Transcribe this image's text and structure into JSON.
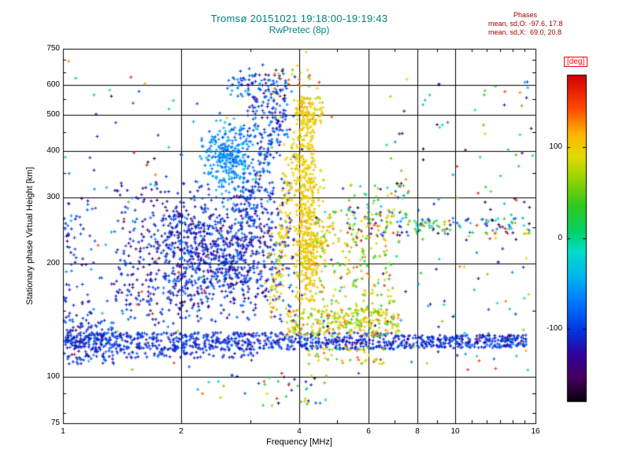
{
  "chart_data": {
    "type": "scatter",
    "title": "Tromsø 20151021 19:18:00-19:19:43",
    "subtitle": "RwPretec (8p)",
    "xlabel": "Frequency [MHz]",
    "ylabel": "Stationary phase Virtual Height [km]",
    "xscale": "log",
    "yscale": "log",
    "xlim": [
      1,
      16
    ],
    "ylim": [
      75,
      750
    ],
    "x_ticks": [
      1,
      2,
      4,
      6,
      8,
      10,
      16
    ],
    "x_grid": [
      2,
      4,
      6,
      8,
      10
    ],
    "x_minor": [
      3,
      5,
      7,
      9,
      11,
      12,
      13,
      14,
      15
    ],
    "y_ticks": [
      75,
      100,
      200,
      300,
      400,
      500,
      600,
      750
    ],
    "y_grid": [
      100,
      200,
      300,
      400,
      500,
      600
    ],
    "y_minor": [
      80,
      90,
      150,
      250,
      350,
      450,
      550,
      650,
      700
    ],
    "marker": "plus",
    "grid": true,
    "colorbar": {
      "label": "[deg]",
      "min": -180,
      "max": 180,
      "ticks": [
        100,
        0,
        -100
      ],
      "stops": [
        [
          0.0,
          "#0a0010"
        ],
        [
          0.07,
          "#46005e"
        ],
        [
          0.14,
          "#32009b"
        ],
        [
          0.22,
          "#0038e1"
        ],
        [
          0.3,
          "#0075ff"
        ],
        [
          0.38,
          "#00b4f0"
        ],
        [
          0.46,
          "#00ddc8"
        ],
        [
          0.52,
          "#00d264"
        ],
        [
          0.6,
          "#2fc81e"
        ],
        [
          0.68,
          "#96d200"
        ],
        [
          0.75,
          "#e1dc00"
        ],
        [
          0.82,
          "#ffb400"
        ],
        [
          0.9,
          "#ff4600"
        ],
        [
          1.0,
          "#d20000"
        ]
      ]
    },
    "clusters": [
      {
        "type": "box",
        "n": 700,
        "f": [
          1.0,
          7.0
        ],
        "h": [
          118,
          131
        ],
        "phase": [
          -105,
          14
        ]
      },
      {
        "type": "box",
        "n": 300,
        "f": [
          7.0,
          15.2
        ],
        "h": [
          119,
          129
        ],
        "phase": [
          -105,
          16
        ]
      },
      {
        "type": "box",
        "n": 140,
        "f": [
          1.0,
          1.35
        ],
        "h": [
          108,
          142
        ],
        "phase": [
          -105,
          20
        ]
      },
      {
        "type": "box",
        "n": 80,
        "f": [
          1.35,
          3.2
        ],
        "h": [
          112,
          120
        ],
        "phase": [
          -110,
          15
        ]
      },
      {
        "type": "box",
        "n": 260,
        "f": [
          3.7,
          7.2
        ],
        "h": [
          128,
          152
        ],
        "phase": [
          85,
          30
        ]
      },
      {
        "type": "box",
        "n": 50,
        "f": [
          4.2,
          6.6
        ],
        "h": [
          108,
          120
        ],
        "phase": [
          80,
          40
        ]
      },
      {
        "type": "gauss",
        "n": 450,
        "f": [
          2.55,
          0.07
        ],
        "h": [
          205,
          0.06
        ],
        "phase": [
          -110,
          22
        ]
      },
      {
        "type": "gauss",
        "n": 180,
        "f": [
          1.95,
          0.06
        ],
        "h": [
          245,
          0.05
        ],
        "phase": [
          -112,
          20
        ]
      },
      {
        "type": "gauss",
        "n": 160,
        "f": [
          1.75,
          0.07
        ],
        "h": [
          170,
          0.05
        ],
        "phase": [
          -108,
          20
        ]
      },
      {
        "type": "box",
        "n": 320,
        "f": [
          1.35,
          3.9
        ],
        "h": [
          140,
          330
        ],
        "phase": [
          -110,
          28
        ]
      },
      {
        "type": "gauss",
        "n": 150,
        "f": [
          3.1,
          0.04
        ],
        "h": [
          255,
          0.07
        ],
        "phase": [
          -105,
          25
        ]
      },
      {
        "type": "arc",
        "n": 140,
        "f": [
          2.9,
          3.6
        ],
        "h": [
          270,
          520
        ],
        "jf": 0.015,
        "jh": 0.03,
        "phase": [
          -100,
          20
        ]
      },
      {
        "type": "gauss",
        "n": 300,
        "f": [
          2.68,
          0.035
        ],
        "h": [
          385,
          0.045
        ],
        "phase": [
          -62,
          18
        ]
      },
      {
        "type": "box",
        "n": 90,
        "f": [
          2.95,
          3.75
        ],
        "h": [
          430,
          640
        ],
        "phase": [
          -100,
          25
        ]
      },
      {
        "type": "box",
        "n": 30,
        "f": [
          2.6,
          3.1
        ],
        "h": [
          560,
          660
        ],
        "phase": [
          -95,
          30
        ]
      },
      {
        "type": "gauss",
        "n": 40,
        "f": [
          3.35,
          0.03
        ],
        "h": [
          600,
          0.03
        ],
        "phase": [
          -100,
          20
        ]
      },
      {
        "type": "box",
        "n": 280,
        "f": [
          3.92,
          4.38
        ],
        "h": [
          155,
          545
        ],
        "phase": [
          100,
          12
        ]
      },
      {
        "type": "gauss",
        "n": 150,
        "f": [
          4.15,
          0.02
        ],
        "h": [
          330,
          0.1
        ],
        "phase": [
          100,
          12
        ]
      },
      {
        "type": "gauss",
        "n": 160,
        "f": [
          4.3,
          0.018
        ],
        "h": [
          215,
          0.05
        ],
        "phase": [
          102,
          10
        ]
      },
      {
        "type": "box",
        "n": 70,
        "f": [
          4.0,
          4.6
        ],
        "h": [
          470,
          560
        ],
        "phase": [
          100,
          15
        ]
      },
      {
        "type": "box",
        "n": 25,
        "f": [
          3.4,
          4.6
        ],
        "h": [
          560,
          660
        ],
        "phase": [
          120,
          40
        ]
      },
      {
        "type": "arc",
        "n": 130,
        "f": [
          3.35,
          3.95
        ],
        "h": [
          150,
          420
        ],
        "jf": 0.012,
        "jh": 0.025,
        "phase": [
          95,
          15
        ]
      },
      {
        "type": "box",
        "n": 230,
        "f": [
          4.4,
          7.0
        ],
        "h": [
          135,
          280
        ],
        "phase": [
          75,
          45
        ]
      },
      {
        "type": "box",
        "n": 90,
        "f": [
          5.3,
          7.6
        ],
        "h": [
          225,
          330
        ],
        "phase": [
          0,
          120
        ]
      },
      {
        "type": "box",
        "n": 110,
        "f": [
          7.0,
          15.5
        ],
        "h": [
          240,
          265
        ],
        "phase": [
          -10,
          90
        ]
      },
      {
        "type": "box",
        "n": 90,
        "f": [
          7.0,
          15.8
        ],
        "h": [
          110,
          620
        ],
        "phase": [
          -60,
          100
        ]
      },
      {
        "type": "box",
        "n": 45,
        "f": [
          2.2,
          4.7
        ],
        "h": [
          83,
          102
        ],
        "phase": [
          0,
          110
        ]
      },
      {
        "type": "box",
        "n": 130,
        "f": [
          1.0,
          15.8
        ],
        "h": [
          100,
          700
        ],
        "phase": [
          -80,
          100
        ]
      },
      {
        "type": "box",
        "n": 70,
        "f": [
          1.0,
          1.2
        ],
        "h": [
          140,
          300
        ],
        "phase": [
          -105,
          25
        ]
      }
    ]
  },
  "stats": {
    "heading": "Phases",
    "line_o": "mean, sd,O: -97.6, 17.8",
    "line_x": "mean, sd,X:  69.0, 20.8"
  },
  "colors": {
    "title": "#008080",
    "stats": "#a00000",
    "colorbar_label": "#ff0000",
    "axis": "#000000",
    "background": "#ffffff"
  }
}
